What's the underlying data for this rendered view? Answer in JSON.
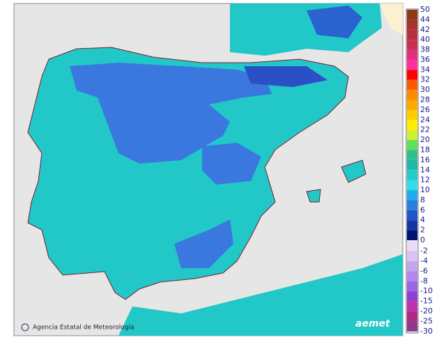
{
  "credit": "Agencia Estatal de Meteorología",
  "logo": "aemet",
  "legend": {
    "positive": {
      "labels": [
        "50",
        "44",
        "42",
        "40",
        "38",
        "36",
        "34",
        "32",
        "30",
        "28",
        "26",
        "24",
        "22",
        "20",
        "18",
        "16",
        "14",
        "12",
        "10",
        "8",
        "6",
        "4",
        "2",
        "0"
      ],
      "colors": [
        "#8b3a12",
        "#a8322c",
        "#b8303e",
        "#c83050",
        "#e0307a",
        "#ff2fa0",
        "#ff0000",
        "#ff5a00",
        "#ff8a00",
        "#ffaa00",
        "#ffcc00",
        "#ffee00",
        "#ccf032",
        "#5fe05a",
        "#2fc090",
        "#20b8a8",
        "#20cccc",
        "#30dde8",
        "#22aaee",
        "#2a7ee0",
        "#2255cc",
        "#1535a5",
        "#001470"
      ]
    },
    "negative": {
      "labels": [
        "-2",
        "-4",
        "-6",
        "-8",
        "-10",
        "-15",
        "-20",
        "-25",
        "-30"
      ],
      "colors": [
        "#e8dcf6",
        "#d8c4f2",
        "#c4a6ee",
        "#b088ea",
        "#9a66e6",
        "#9040d0",
        "#c030b0",
        "#b02888",
        "#8c3a8c"
      ]
    }
  }
}
